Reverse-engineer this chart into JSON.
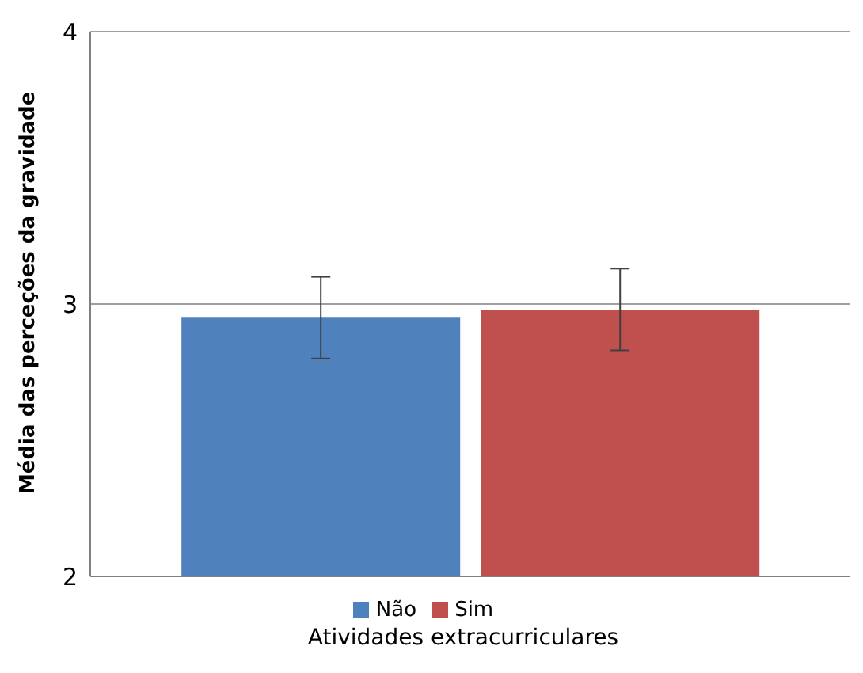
{
  "chart_data": {
    "type": "bar",
    "xlabel": "Atividades extracurriculares",
    "ylabel": "Média das perceções da gravidade",
    "categories": [
      null
    ],
    "series": [
      {
        "name": "Não",
        "color": "#4f81bd",
        "values": [
          2.95
        ],
        "errors": [
          0.15
        ]
      },
      {
        "name": "Sim",
        "color": "#c0504d",
        "values": [
          2.98
        ],
        "errors": [
          0.15
        ]
      }
    ],
    "ylim": [
      2,
      4
    ],
    "yticks": [
      2,
      3,
      4
    ],
    "grid": "y",
    "legend": "bottom"
  }
}
